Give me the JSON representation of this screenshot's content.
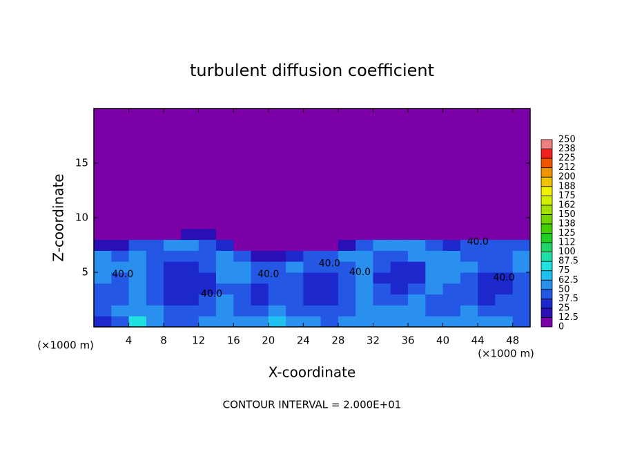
{
  "chart_data": {
    "type": "contour",
    "title": "turbulent diffusion coefficient",
    "x_label": "X-coordinate",
    "y_label": "Z-coordinate",
    "x_unit": "(×1000 m)",
    "y_unit": "(×1000 m)",
    "footnote": "CONTOUR INTERVAL = 2.000E+01",
    "xlim": [
      0,
      50
    ],
    "ylim": [
      0,
      20
    ],
    "xticks": [
      4,
      8,
      12,
      16,
      20,
      24,
      28,
      32,
      36,
      40,
      44,
      48
    ],
    "yticks": [
      5,
      10,
      15
    ],
    "x_edges": [
      0,
      2,
      4,
      6,
      8,
      10,
      12,
      14,
      16,
      18,
      20,
      22,
      24,
      26,
      28,
      30,
      32,
      34,
      36,
      38,
      40,
      42,
      44,
      46,
      48,
      50
    ],
    "y_edges": [
      0,
      1,
      2,
      3,
      4,
      5,
      6,
      7,
      8,
      9,
      20
    ],
    "z": [
      [
        35,
        45,
        80,
        55,
        45,
        45,
        50,
        60,
        55,
        50,
        65,
        60,
        50,
        45,
        50,
        55,
        60,
        60,
        55,
        55,
        50,
        55,
        55,
        50,
        45
      ],
      [
        40,
        50,
        60,
        50,
        45,
        45,
        45,
        55,
        40,
        45,
        50,
        45,
        40,
        40,
        45,
        55,
        55,
        50,
        55,
        45,
        45,
        50,
        45,
        45,
        45
      ],
      [
        40,
        45,
        55,
        45,
        35,
        35,
        40,
        50,
        40,
        35,
        40,
        40,
        35,
        35,
        40,
        50,
        45,
        40,
        50,
        45,
        40,
        45,
        35,
        40,
        40
      ],
      [
        45,
        45,
        50,
        40,
        30,
        30,
        35,
        45,
        45,
        35,
        40,
        40,
        30,
        30,
        40,
        55,
        40,
        35,
        40,
        50,
        45,
        40,
        30,
        30,
        45
      ],
      [
        50,
        45,
        55,
        40,
        30,
        30,
        35,
        50,
        50,
        40,
        45,
        45,
        35,
        30,
        45,
        55,
        35,
        30,
        35,
        55,
        50,
        40,
        30,
        30,
        45
      ],
      [
        55,
        50,
        55,
        40,
        35,
        35,
        40,
        50,
        55,
        45,
        40,
        50,
        40,
        40,
        45,
        55,
        40,
        30,
        35,
        50,
        55,
        50,
        40,
        40,
        50
      ],
      [
        50,
        45,
        50,
        45,
        40,
        40,
        45,
        50,
        45,
        20,
        15,
        30,
        45,
        45,
        50,
        55,
        45,
        40,
        50,
        55,
        50,
        45,
        45,
        45,
        50
      ],
      [
        20,
        15,
        40,
        45,
        50,
        50,
        45,
        35,
        10,
        5,
        0,
        5,
        10,
        10,
        15,
        40,
        50,
        50,
        55,
        45,
        35,
        40,
        45,
        45,
        40
      ],
      [
        0,
        0,
        0,
        0,
        10,
        20,
        20,
        10,
        0,
        0,
        0,
        0,
        0,
        0,
        0,
        0,
        0,
        10,
        10,
        10,
        0,
        0,
        0,
        0,
        0
      ],
      [
        0,
        0,
        0,
        0,
        0,
        0,
        0,
        0,
        0,
        0,
        0,
        0,
        0,
        0,
        0,
        0,
        0,
        0,
        0,
        0,
        0,
        0,
        0,
        0,
        0
      ]
    ],
    "levels": [
      0,
      12.5,
      25,
      37.5,
      50,
      62.5,
      75,
      87.5,
      100,
      {
        "value": 112.5,
        "label": "112"
      },
      125,
      {
        "value": 137.5,
        "label": "138"
      },
      150,
      {
        "value": 162.5,
        "label": "162"
      },
      175,
      {
        "value": 187.5,
        "label": "188"
      },
      200,
      {
        "value": 212.5,
        "label": "212"
      },
      225,
      {
        "value": 237.5,
        "label": "238"
      },
      250
    ],
    "level_colors": [
      "#7c00a8",
      "#2a10b4",
      "#1c28cc",
      "#2458e4",
      "#2a90f0",
      "#20c0f0",
      "#20e0e0",
      "#20e0a8",
      "#20d468",
      "#20d020",
      "#44d000",
      "#74d400",
      "#a4e000",
      "#d0f000",
      "#f0f000",
      "#f0c400",
      "#f09400",
      "#f05400",
      "#f02020",
      "#f08080"
    ],
    "contour_labels": [
      {
        "value": 40,
        "label": "40.0",
        "x": 3.3,
        "y": 4.8
      },
      {
        "value": 40,
        "label": "40.0",
        "x": 13.5,
        "y": 3.0
      },
      {
        "value": 40,
        "label": "40.0",
        "x": 20.0,
        "y": 4.8
      },
      {
        "value": 40,
        "label": "40.0",
        "x": 27.0,
        "y": 5.8
      },
      {
        "value": 40,
        "label": "40.0",
        "x": 30.5,
        "y": 5.0
      },
      {
        "value": 40,
        "label": "40.0",
        "x": 44.0,
        "y": 7.8
      },
      {
        "value": 40,
        "label": "40.0",
        "x": 47.0,
        "y": 4.5
      }
    ]
  }
}
